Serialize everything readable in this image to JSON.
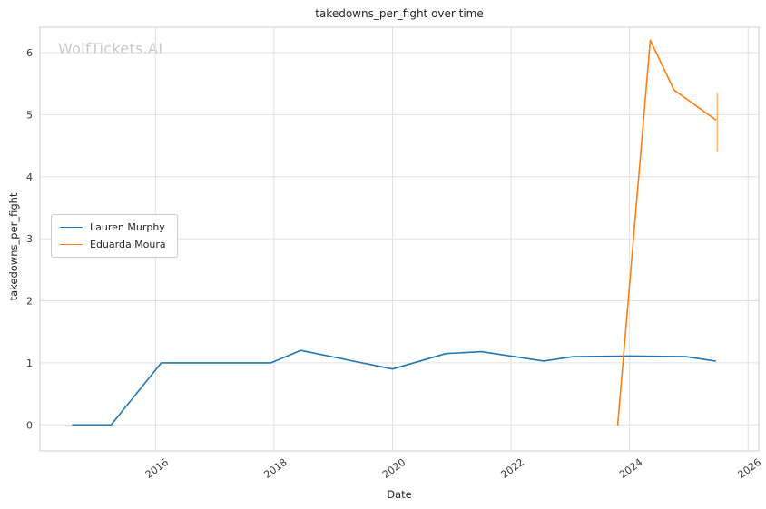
{
  "title": "takedowns_per_fight over time",
  "watermark": "WolfTickets.AI",
  "chart_data": {
    "type": "line",
    "title": "takedowns_per_fight over time",
    "xlabel": "Date",
    "ylabel": "takedowns_per_fight",
    "xlim": [
      2014.05,
      2026.18
    ],
    "ylim": [
      -0.42,
      6.41
    ],
    "xticks": [
      2016,
      2018,
      2020,
      2022,
      2024,
      2026
    ],
    "yticks": [
      0,
      1,
      2,
      3,
      4,
      5,
      6
    ],
    "grid": true,
    "legend_position": "center-left",
    "series": [
      {
        "name": "Lauren Murphy",
        "color": "#1f77b4",
        "points": [
          [
            2014.6,
            0.0
          ],
          [
            2015.25,
            0.0
          ],
          [
            2016.1,
            1.0
          ],
          [
            2017.0,
            1.0
          ],
          [
            2017.95,
            1.0
          ],
          [
            2018.45,
            1.2
          ],
          [
            2020.0,
            0.9
          ],
          [
            2020.9,
            1.15
          ],
          [
            2021.5,
            1.18
          ],
          [
            2022.55,
            1.03
          ],
          [
            2023.05,
            1.1
          ],
          [
            2024.0,
            1.11
          ],
          [
            2024.95,
            1.1
          ],
          [
            2025.45,
            1.03
          ]
        ]
      },
      {
        "name": "Eduarda Moura",
        "color": "#ff7f0e",
        "points": [
          [
            2023.8,
            0.0
          ],
          [
            2024.35,
            6.2
          ],
          [
            2024.75,
            5.4
          ],
          [
            2025.45,
            4.92
          ]
        ]
      }
    ],
    "errorbar": {
      "series": "Eduarda Moura",
      "x": 2025.45,
      "y_low": 4.4,
      "y_high": 5.35,
      "color": "#ff7f0e"
    }
  }
}
